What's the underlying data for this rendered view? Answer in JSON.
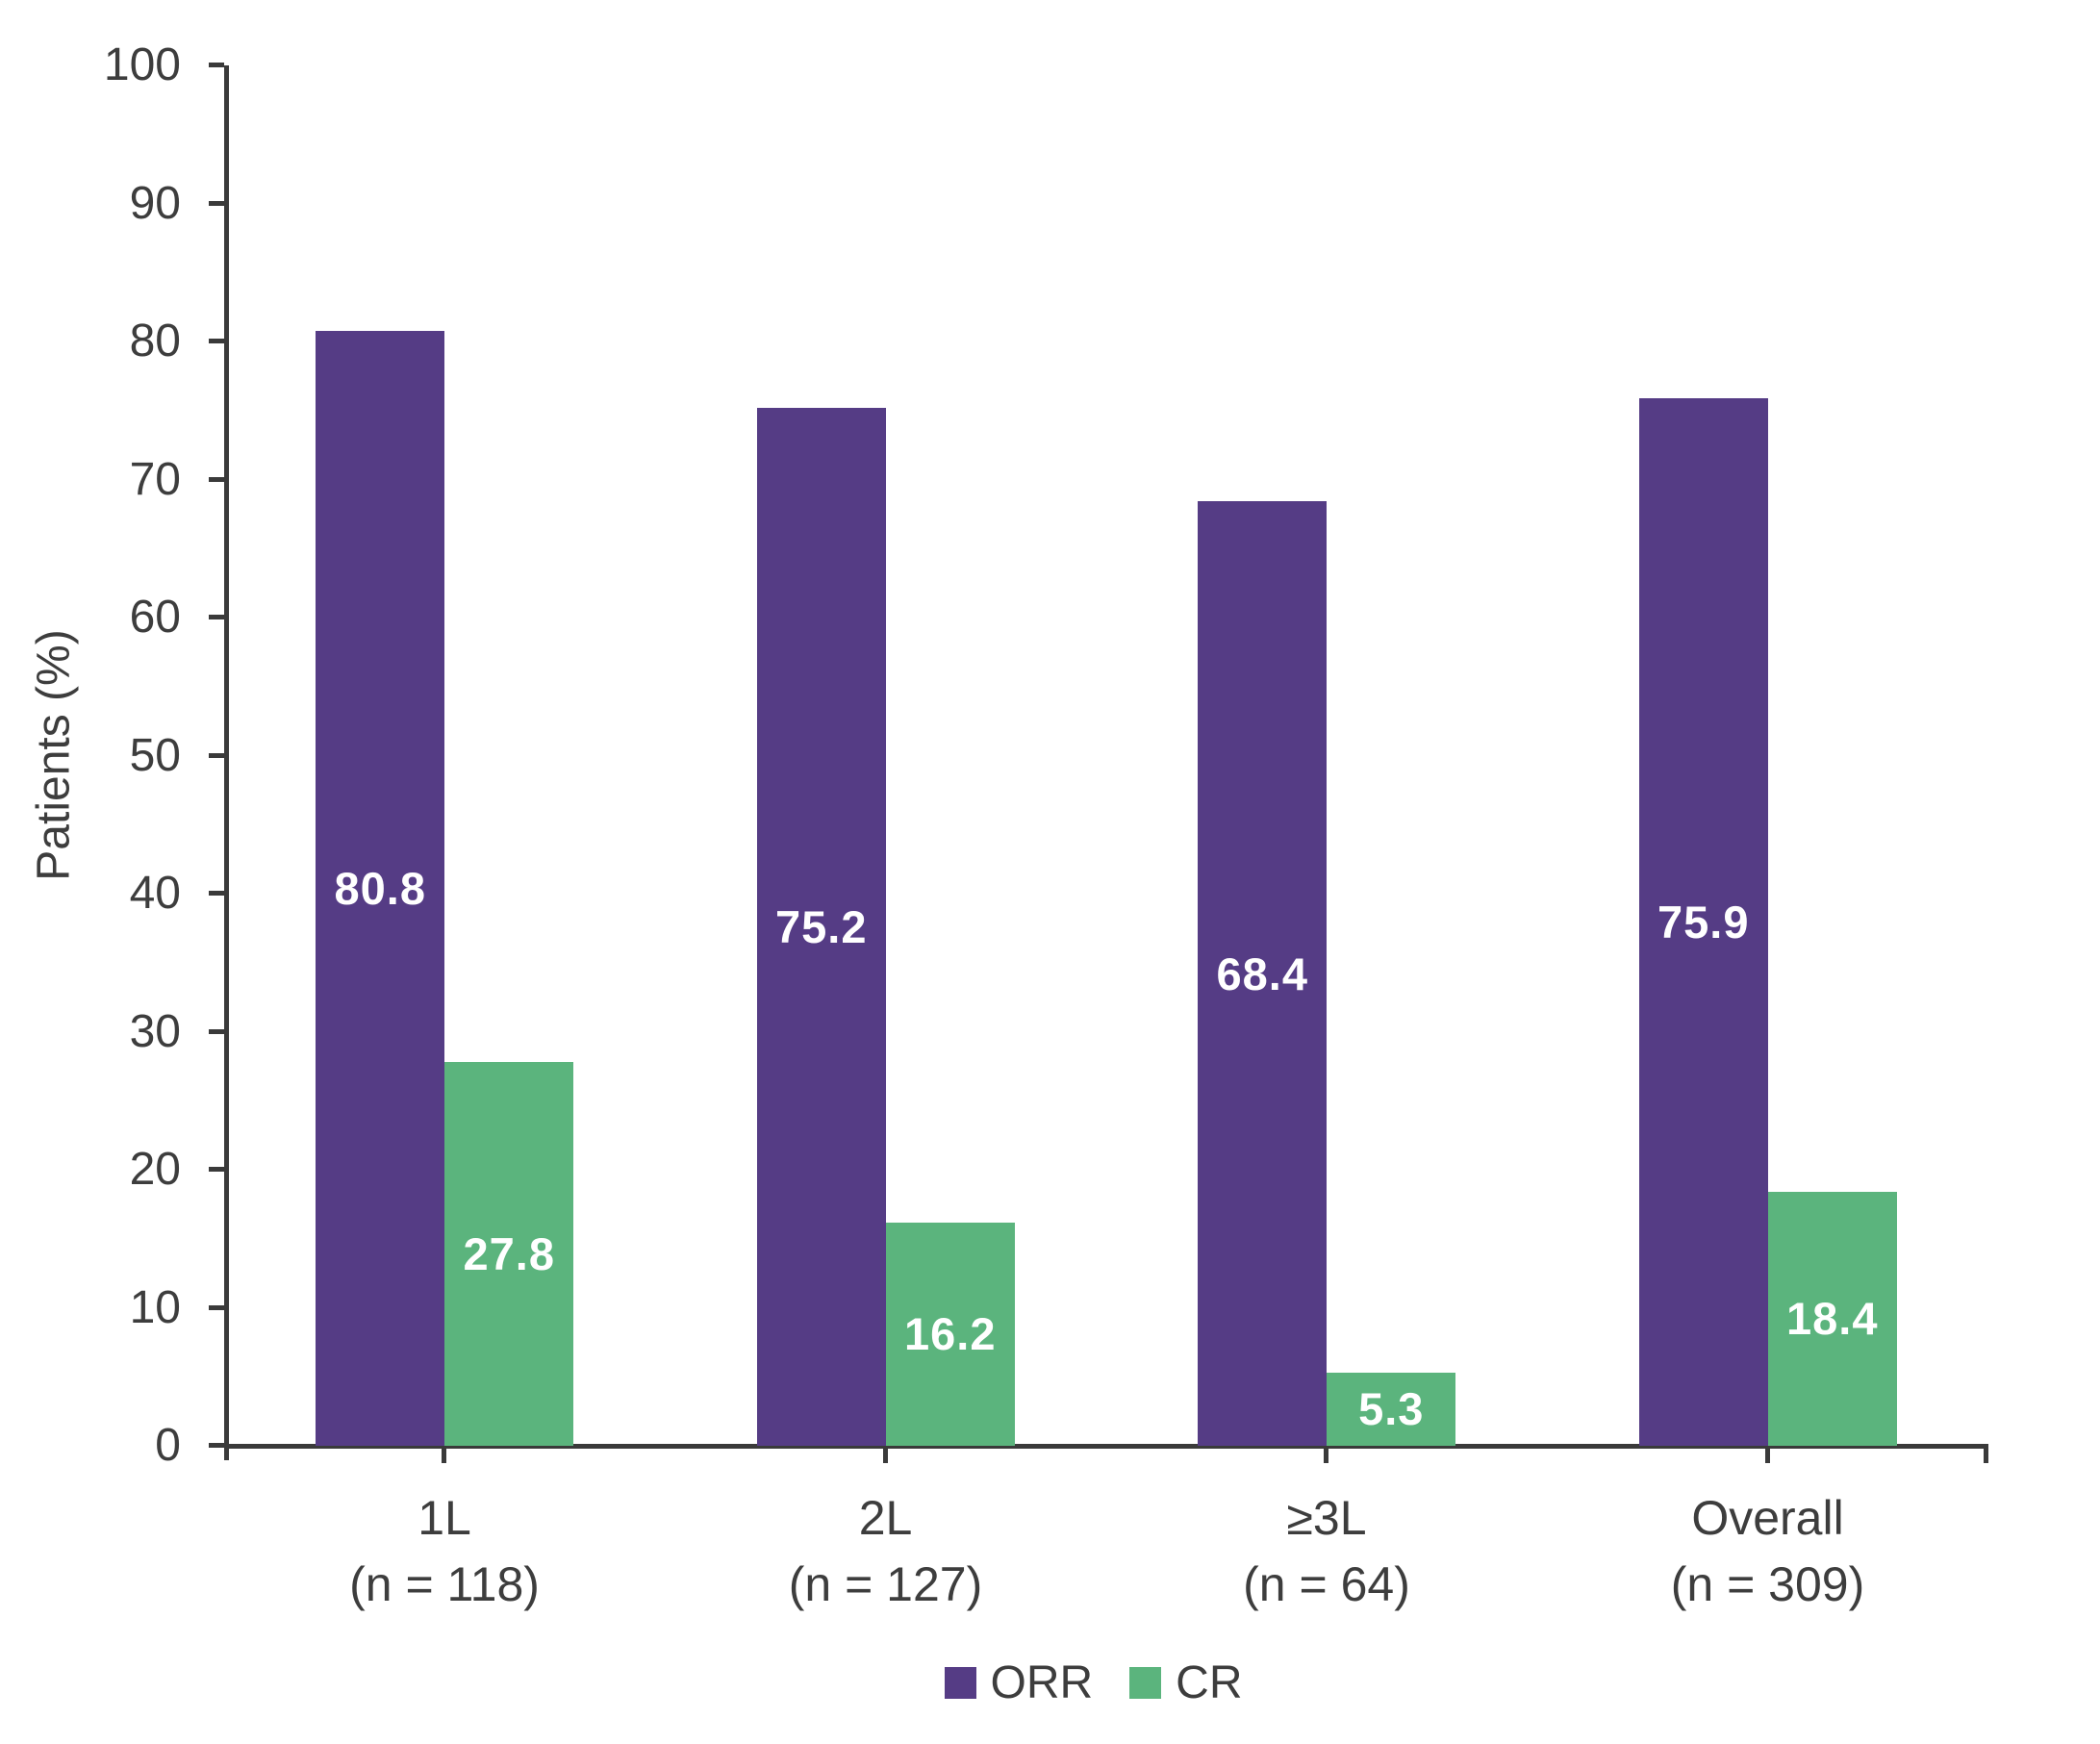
{
  "chart_data": {
    "type": "bar",
    "title": "",
    "xlabel": "",
    "ylabel": "Patients (%)",
    "ylim": [
      0,
      100
    ],
    "ytick_step": 10,
    "grid": false,
    "legend_position": "bottom-center",
    "categories": [
      {
        "label": "1L",
        "sublabel": "(n = 118)"
      },
      {
        "label": "2L",
        "sublabel": "(n = 127)"
      },
      {
        "label": "≥3L",
        "sublabel": "(n = 64)"
      },
      {
        "label": "Overall",
        "sublabel": "(n = 309)"
      }
    ],
    "series": [
      {
        "name": "ORR",
        "color": "#553C85",
        "values": [
          80.8,
          75.2,
          68.4,
          75.9
        ]
      },
      {
        "name": "CR",
        "color": "#5BB47D",
        "values": [
          27.8,
          16.2,
          5.3,
          18.4
        ]
      }
    ],
    "value_labels_inside_bars": true,
    "value_label_color": "#FFFFFF",
    "axis_color": "#3A3A3A",
    "text_color": "#3D3D3D",
    "background_color": "#FFFFFF"
  }
}
